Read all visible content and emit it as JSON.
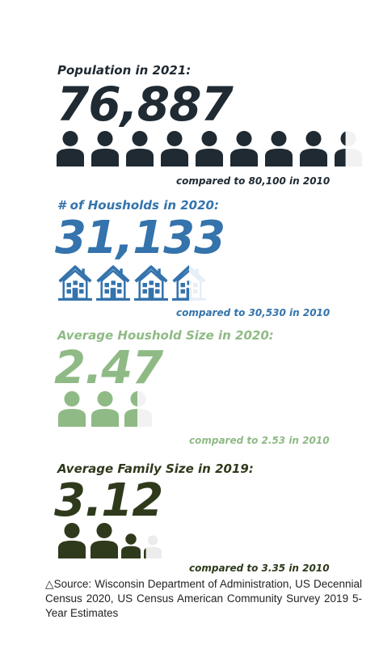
{
  "colors": {
    "population": "#1f2a33",
    "households": "#3473ac",
    "household_size": "#8fba85",
    "family_size": "#2f3a1c",
    "faded": "#f2f2f2"
  },
  "population": {
    "label": "Population in 2021:",
    "value": "76,887",
    "compare": "compared to 80,100 in 2010",
    "icon_count": 8.4
  },
  "households": {
    "label": "# of Housholds in 2020:",
    "value": "31,133",
    "compare": "compared to 30,530 in 2010",
    "icon_count": 3.5
  },
  "household_size": {
    "label": "Average Houshold Size in 2020:",
    "value": "2.47",
    "compare": "compared to 2.53 in 2010",
    "icon_count": 2.47
  },
  "family_size": {
    "label": "Average Family Size in 2019:",
    "value": "3.12",
    "compare": "compared to 3.35 in 2010",
    "icon_count": 3.12
  },
  "source": "△Source: Wisconsin Department of Administration, US Decennial Census 2020, US Census American Community Survey 2019 5-Year Estimates",
  "icons": {
    "person": "person-icon",
    "house": "house-icon"
  }
}
